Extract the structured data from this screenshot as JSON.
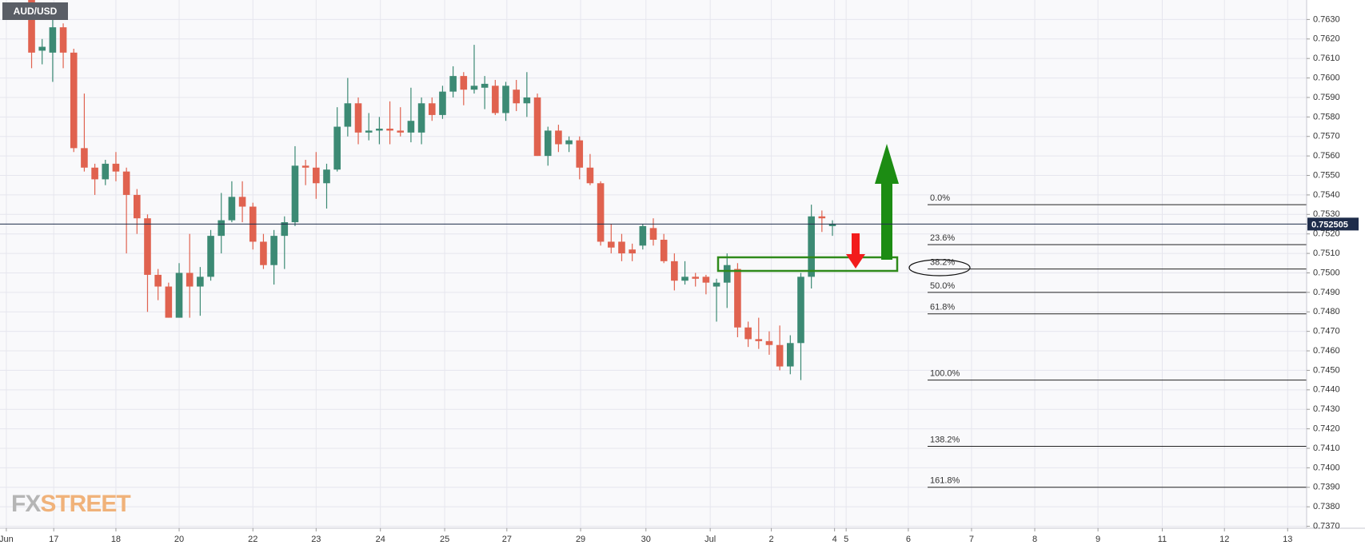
{
  "chart_data": {
    "type": "candlestick",
    "symbol": "AUD/USD",
    "watermark": [
      "FX",
      "STREET"
    ],
    "up_color": "#3c8a74",
    "down_color": "#e0624f",
    "grid": true,
    "ylim": [
      0.7369,
      0.764
    ],
    "yticks": [
      {
        "value": 0.737,
        "label": "0.7370"
      },
      {
        "value": 0.738,
        "label": "0.7380"
      },
      {
        "value": 0.739,
        "label": "0.7390"
      },
      {
        "value": 0.74,
        "label": "0.7400"
      },
      {
        "value": 0.741,
        "label": "0.7410"
      },
      {
        "value": 0.742,
        "label": "0.7420"
      },
      {
        "value": 0.743,
        "label": "0.7430"
      },
      {
        "value": 0.744,
        "label": "0.7440"
      },
      {
        "value": 0.745,
        "label": "0.7450"
      },
      {
        "value": 0.746,
        "label": "0.7460"
      },
      {
        "value": 0.747,
        "label": "0.7470"
      },
      {
        "value": 0.748,
        "label": "0.7480"
      },
      {
        "value": 0.749,
        "label": "0.7490"
      },
      {
        "value": 0.75,
        "label": "0.7500"
      },
      {
        "value": 0.751,
        "label": "0.7510"
      },
      {
        "value": 0.752,
        "label": "0.7520"
      },
      {
        "value": 0.753,
        "label": "0.7530"
      },
      {
        "value": 0.754,
        "label": "0.7540"
      },
      {
        "value": 0.755,
        "label": "0.7550"
      },
      {
        "value": 0.756,
        "label": "0.7560"
      },
      {
        "value": 0.757,
        "label": "0.7570"
      },
      {
        "value": 0.758,
        "label": "0.7580"
      },
      {
        "value": 0.759,
        "label": "0.7590"
      },
      {
        "value": 0.76,
        "label": "0.7600"
      },
      {
        "value": 0.761,
        "label": "0.7610"
      },
      {
        "value": 0.762,
        "label": "0.7620"
      },
      {
        "value": 0.763,
        "label": "0.7630"
      }
    ],
    "xlim": [
      -3,
      121
    ],
    "xticks": [
      {
        "value": -2.4,
        "label": "Jun"
      },
      {
        "value": 2.1,
        "label": "17"
      },
      {
        "value": 8,
        "label": "18"
      },
      {
        "value": 14,
        "label": "20"
      },
      {
        "value": 21,
        "label": "22"
      },
      {
        "value": 27,
        "label": "23"
      },
      {
        "value": 33.1,
        "label": "24"
      },
      {
        "value": 39.2,
        "label": "25"
      },
      {
        "value": 45.1,
        "label": "27"
      },
      {
        "value": 52.1,
        "label": "29"
      },
      {
        "value": 58.3,
        "label": "30"
      },
      {
        "value": 64.4,
        "label": "Jul"
      },
      {
        "value": 70.2,
        "label": "2"
      },
      {
        "value": 76.2,
        "label": "4"
      },
      {
        "value": 77.3,
        "label": "5"
      },
      {
        "value": 83.2,
        "label": "6"
      },
      {
        "value": 89.2,
        "label": "7"
      },
      {
        "value": 95.2,
        "label": "8"
      },
      {
        "value": 101.2,
        "label": "9"
      },
      {
        "value": 107.3,
        "label": "11"
      },
      {
        "value": 113.2,
        "label": "12"
      },
      {
        "value": 119.2,
        "label": "13"
      }
    ],
    "last_price": 0.752505,
    "fib_levels": [
      {
        "label": "0.0%",
        "value": 0.7535
      },
      {
        "label": "23.6%",
        "value": 0.75145
      },
      {
        "label": "38.2%",
        "value": 0.7502
      },
      {
        "label": "50.0%",
        "value": 0.749
      },
      {
        "label": "61.8%",
        "value": 0.7479
      },
      {
        "label": "100.0%",
        "value": 0.7445
      },
      {
        "label": "138.2%",
        "value": 0.7411
      },
      {
        "label": "161.8%",
        "value": 0.739
      }
    ],
    "candles": [
      {
        "open": 0.764,
        "high": 0.764,
        "low": 0.7605,
        "close": 0.7613
      },
      {
        "open": 0.7614,
        "high": 0.762,
        "low": 0.7607,
        "close": 0.7616
      },
      {
        "open": 0.7613,
        "high": 0.763,
        "low": 0.7598,
        "close": 0.7626
      },
      {
        "open": 0.7626,
        "high": 0.7628,
        "low": 0.7605,
        "close": 0.7613
      },
      {
        "open": 0.7613,
        "high": 0.7615,
        "low": 0.7562,
        "close": 0.7564
      },
      {
        "open": 0.7564,
        "high": 0.7592,
        "low": 0.7552,
        "close": 0.7554
      },
      {
        "open": 0.7554,
        "high": 0.7556,
        "low": 0.754,
        "close": 0.7548
      },
      {
        "open": 0.7548,
        "high": 0.7558,
        "low": 0.7545,
        "close": 0.7556
      },
      {
        "open": 0.7556,
        "high": 0.7562,
        "low": 0.7547,
        "close": 0.7552
      },
      {
        "open": 0.7552,
        "high": 0.7554,
        "low": 0.751,
        "close": 0.754
      },
      {
        "open": 0.754,
        "high": 0.7543,
        "low": 0.752,
        "close": 0.7528
      },
      {
        "open": 0.7528,
        "high": 0.753,
        "low": 0.748,
        "close": 0.7499
      },
      {
        "open": 0.7499,
        "high": 0.7502,
        "low": 0.7486,
        "close": 0.7493
      },
      {
        "open": 0.7493,
        "high": 0.7495,
        "low": 0.7477,
        "close": 0.7477
      },
      {
        "open": 0.7477,
        "high": 0.7505,
        "low": 0.7477,
        "close": 0.75
      },
      {
        "open": 0.75,
        "high": 0.752,
        "low": 0.7477,
        "close": 0.7493
      },
      {
        "open": 0.7493,
        "high": 0.7503,
        "low": 0.7478,
        "close": 0.7498
      },
      {
        "open": 0.7498,
        "high": 0.7522,
        "low": 0.7496,
        "close": 0.7519
      },
      {
        "open": 0.7519,
        "high": 0.7541,
        "low": 0.751,
        "close": 0.7527
      },
      {
        "open": 0.7527,
        "high": 0.7547,
        "low": 0.7526,
        "close": 0.7539
      },
      {
        "open": 0.7539,
        "high": 0.7547,
        "low": 0.7526,
        "close": 0.7534
      },
      {
        "open": 0.7534,
        "high": 0.7536,
        "low": 0.7512,
        "close": 0.7516
      },
      {
        "open": 0.7516,
        "high": 0.752,
        "low": 0.7502,
        "close": 0.7504
      },
      {
        "open": 0.7504,
        "high": 0.7522,
        "low": 0.7494,
        "close": 0.7519
      },
      {
        "open": 0.7519,
        "high": 0.7529,
        "low": 0.7502,
        "close": 0.7526
      },
      {
        "open": 0.7526,
        "high": 0.7565,
        "low": 0.7524,
        "close": 0.7555
      },
      {
        "open": 0.7555,
        "high": 0.7558,
        "low": 0.7545,
        "close": 0.7554
      },
      {
        "open": 0.7554,
        "high": 0.7562,
        "low": 0.7538,
        "close": 0.7546
      },
      {
        "open": 0.7546,
        "high": 0.7556,
        "low": 0.7533,
        "close": 0.7553
      },
      {
        "open": 0.7553,
        "high": 0.7585,
        "low": 0.7552,
        "close": 0.7575
      },
      {
        "open": 0.7575,
        "high": 0.76,
        "low": 0.757,
        "close": 0.7587
      },
      {
        "open": 0.7587,
        "high": 0.759,
        "low": 0.7566,
        "close": 0.7572
      },
      {
        "open": 0.7572,
        "high": 0.7582,
        "low": 0.7568,
        "close": 0.7573
      },
      {
        "open": 0.7573,
        "high": 0.758,
        "low": 0.7566,
        "close": 0.7574
      },
      {
        "open": 0.7574,
        "high": 0.7588,
        "low": 0.7566,
        "close": 0.7573
      },
      {
        "open": 0.7573,
        "high": 0.7585,
        "low": 0.757,
        "close": 0.7572
      },
      {
        "open": 0.7572,
        "high": 0.7595,
        "low": 0.7567,
        "close": 0.7578
      },
      {
        "open": 0.7572,
        "high": 0.759,
        "low": 0.7566,
        "close": 0.7587
      },
      {
        "open": 0.7587,
        "high": 0.759,
        "low": 0.7578,
        "close": 0.7581
      },
      {
        "open": 0.7581,
        "high": 0.7596,
        "low": 0.7579,
        "close": 0.7593
      },
      {
        "open": 0.7593,
        "high": 0.7606,
        "low": 0.759,
        "close": 0.7601
      },
      {
        "open": 0.7601,
        "high": 0.7603,
        "low": 0.7586,
        "close": 0.7594
      },
      {
        "open": 0.7594,
        "high": 0.7617,
        "low": 0.7592,
        "close": 0.7596
      },
      {
        "open": 0.7595,
        "high": 0.7601,
        "low": 0.7584,
        "close": 0.7597
      },
      {
        "open": 0.7596,
        "high": 0.7599,
        "low": 0.7581,
        "close": 0.7582
      },
      {
        "open": 0.7582,
        "high": 0.7598,
        "low": 0.7578,
        "close": 0.7596
      },
      {
        "open": 0.7594,
        "high": 0.7599,
        "low": 0.7583,
        "close": 0.7587
      },
      {
        "open": 0.7587,
        "high": 0.7603,
        "low": 0.758,
        "close": 0.759
      },
      {
        "open": 0.759,
        "high": 0.7592,
        "low": 0.756,
        "close": 0.756
      },
      {
        "open": 0.756,
        "high": 0.7575,
        "low": 0.7555,
        "close": 0.7573
      },
      {
        "open": 0.7573,
        "high": 0.7576,
        "low": 0.7562,
        "close": 0.7566
      },
      {
        "open": 0.7566,
        "high": 0.757,
        "low": 0.7562,
        "close": 0.7568
      },
      {
        "open": 0.7568,
        "high": 0.757,
        "low": 0.7548,
        "close": 0.7554
      },
      {
        "open": 0.7554,
        "high": 0.7561,
        "low": 0.7545,
        "close": 0.7546
      },
      {
        "open": 0.7546,
        "high": 0.7547,
        "low": 0.7514,
        "close": 0.7516
      },
      {
        "open": 0.7516,
        "high": 0.7525,
        "low": 0.751,
        "close": 0.7513
      },
      {
        "open": 0.7516,
        "high": 0.752,
        "low": 0.7506,
        "close": 0.751
      },
      {
        "open": 0.7512,
        "high": 0.7515,
        "low": 0.7506,
        "close": 0.751
      },
      {
        "open": 0.7514,
        "high": 0.7525,
        "low": 0.7512,
        "close": 0.7524
      },
      {
        "open": 0.7523,
        "high": 0.7528,
        "low": 0.7514,
        "close": 0.7517
      },
      {
        "open": 0.7517,
        "high": 0.752,
        "low": 0.7505,
        "close": 0.7506
      },
      {
        "open": 0.7506,
        "high": 0.751,
        "low": 0.7491,
        "close": 0.7496
      },
      {
        "open": 0.7496,
        "high": 0.7506,
        "low": 0.7494,
        "close": 0.7498
      },
      {
        "open": 0.7498,
        "high": 0.75,
        "low": 0.7493,
        "close": 0.7497
      },
      {
        "open": 0.7498,
        "high": 0.7499,
        "low": 0.7489,
        "close": 0.7495
      },
      {
        "open": 0.7493,
        "high": 0.7497,
        "low": 0.7475,
        "close": 0.7495
      },
      {
        "open": 0.7495,
        "high": 0.751,
        "low": 0.7482,
        "close": 0.7504
      },
      {
        "open": 0.7502,
        "high": 0.7505,
        "low": 0.7467,
        "close": 0.7472
      },
      {
        "open": 0.7472,
        "high": 0.7475,
        "low": 0.7462,
        "close": 0.7466
      },
      {
        "open": 0.7466,
        "high": 0.7477,
        "low": 0.7461,
        "close": 0.7465
      },
      {
        "open": 0.7465,
        "high": 0.747,
        "low": 0.7458,
        "close": 0.7463
      },
      {
        "open": 0.7463,
        "high": 0.7473,
        "low": 0.745,
        "close": 0.7452
      },
      {
        "open": 0.7452,
        "high": 0.7468,
        "low": 0.7448,
        "close": 0.7464
      },
      {
        "open": 0.7464,
        "high": 0.75,
        "low": 0.7445,
        "close": 0.7498
      },
      {
        "open": 0.7498,
        "high": 0.7535,
        "low": 0.7492,
        "close": 0.7529
      },
      {
        "open": 0.7529,
        "high": 0.7532,
        "low": 0.7521,
        "close": 0.7528
      },
      {
        "open": 0.7524,
        "high": 0.7527,
        "low": 0.7519,
        "close": 0.7525
      }
    ]
  }
}
